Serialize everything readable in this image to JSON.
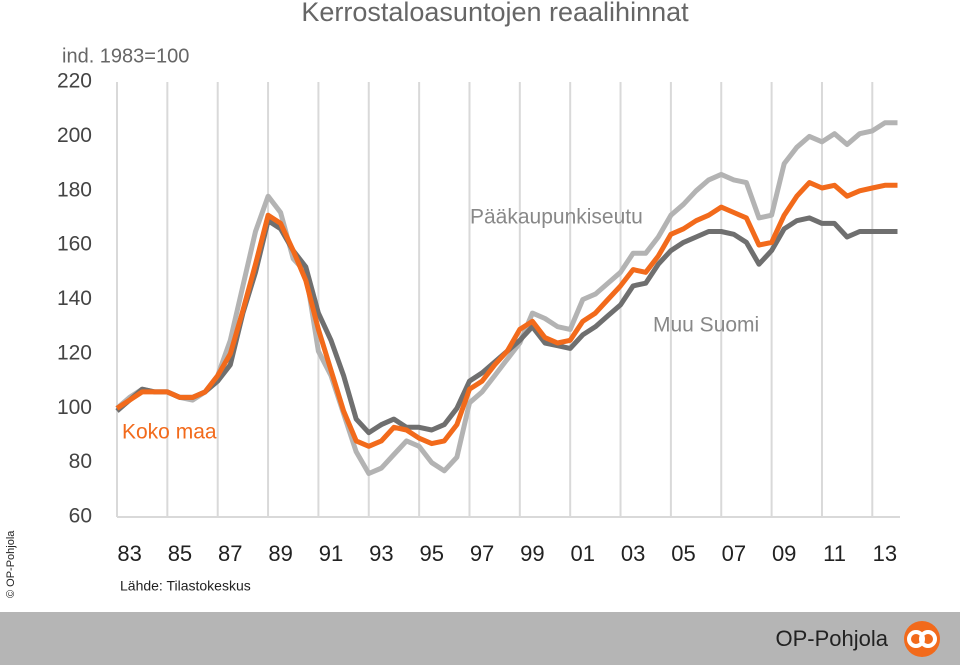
{
  "chart_data": {
    "type": "line",
    "title": "Kerrostaloasuntojen reaalihinnat",
    "subtitle": "ind. 1983=100",
    "source": "Lähde: Tilastokeskus",
    "copyright": "© OP-Pohjola",
    "brand": "OP-Pohjola",
    "x": [
      1983,
      1983.5,
      1984,
      1984.5,
      1985,
      1985.5,
      1986,
      1986.5,
      1987,
      1987.5,
      1988,
      1988.5,
      1989,
      1989.5,
      1990,
      1990.5,
      1991,
      1991.5,
      1992,
      1992.5,
      1993,
      1993.5,
      1994,
      1994.5,
      1995,
      1995.5,
      1996,
      1996.5,
      1997,
      1997.5,
      1998,
      1998.5,
      1999,
      1999.5,
      2000,
      2000.5,
      2001,
      2001.5,
      2002,
      2002.5,
      2003,
      2003.5,
      2004,
      2004.5,
      2005,
      2005.5,
      2006,
      2006.5,
      2007,
      2007.5,
      2008,
      2008.5,
      2009,
      2009.5,
      2010,
      2010.5,
      2011,
      2011.5,
      2012,
      2012.5,
      2013,
      2013.5,
      2014
    ],
    "series": [
      {
        "name": "Pääkaupunkiseutu",
        "color": "#b3b3b3",
        "values": [
          100,
          104,
          107,
          106,
          106,
          104,
          103,
          106,
          112,
          125,
          145,
          165,
          178,
          172,
          155,
          150,
          121,
          112,
          98,
          84,
          76,
          78,
          83,
          88,
          86,
          80,
          77,
          82,
          102,
          106,
          112,
          118,
          124,
          135,
          133,
          130,
          129,
          140,
          142,
          146,
          150,
          157,
          157,
          163,
          171,
          175,
          180,
          184,
          186,
          184,
          183,
          170,
          171,
          190,
          196,
          200,
          198,
          201,
          197,
          201,
          202,
          205,
          205
        ]
      },
      {
        "name": "Muu Suomi",
        "color": "#6f6f6f",
        "values": [
          99,
          103,
          107,
          106,
          106,
          104,
          104,
          106,
          110,
          116,
          135,
          150,
          169,
          166,
          158,
          152,
          135,
          125,
          112,
          96,
          91,
          94,
          96,
          93,
          93,
          92,
          94,
          100,
          110,
          113,
          117,
          121,
          125,
          130,
          124,
          123,
          122,
          127,
          130,
          134,
          138,
          145,
          146,
          153,
          158,
          161,
          163,
          165,
          165,
          164,
          161,
          153,
          158,
          166,
          169,
          170,
          168,
          168,
          163,
          165,
          165,
          165,
          165
        ]
      },
      {
        "name": "Koko maa",
        "color": "#f26a1b",
        "values": [
          100,
          103,
          106,
          106,
          106,
          104,
          104,
          106,
          112,
          120,
          136,
          153,
          171,
          168,
          158,
          147,
          129,
          114,
          99,
          88,
          86,
          88,
          93,
          92,
          89,
          87,
          88,
          94,
          107,
          110,
          116,
          121,
          129,
          132,
          126,
          124,
          125,
          132,
          135,
          140,
          145,
          151,
          150,
          156,
          164,
          166,
          169,
          171,
          174,
          172,
          170,
          160,
          161,
          171,
          178,
          183,
          181,
          182,
          178,
          180,
          181,
          182,
          182
        ]
      }
    ],
    "xlim": [
      1983,
      2014.1
    ],
    "xticks": [
      {
        "value": 1983,
        "label": "83"
      },
      {
        "value": 1985,
        "label": "85"
      },
      {
        "value": 1987,
        "label": "87"
      },
      {
        "value": 1989,
        "label": "89"
      },
      {
        "value": 1991,
        "label": "91"
      },
      {
        "value": 1993,
        "label": "93"
      },
      {
        "value": 1995,
        "label": "95"
      },
      {
        "value": 1997,
        "label": "97"
      },
      {
        "value": 1999,
        "label": "99"
      },
      {
        "value": 2001,
        "label": "01"
      },
      {
        "value": 2003,
        "label": "03"
      },
      {
        "value": 2005,
        "label": "05"
      },
      {
        "value": 2007,
        "label": "07"
      },
      {
        "value": 2009,
        "label": "09"
      },
      {
        "value": 2011,
        "label": "11"
      },
      {
        "value": 2013,
        "label": "13"
      }
    ],
    "ylim": [
      60,
      220
    ],
    "yticks": [
      60,
      80,
      100,
      120,
      140,
      160,
      180,
      200,
      220
    ],
    "grid": "x"
  }
}
